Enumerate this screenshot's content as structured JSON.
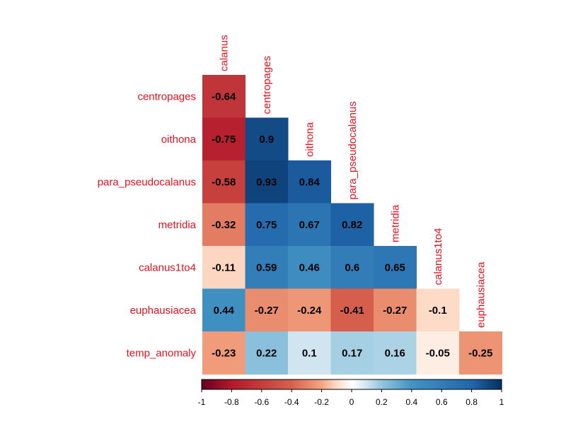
{
  "chart_data": {
    "type": "heatmap",
    "layout": "lower-triangular correlation matrix",
    "variables": [
      "calanus",
      "centropages",
      "oithona",
      "para_pseudocalanus",
      "metridia",
      "calanus1to4",
      "euphausiacea",
      "temp_anomaly"
    ],
    "row_labels": [
      "centropages",
      "oithona",
      "para_pseudocalanus",
      "metridia",
      "calanus1to4",
      "euphausiacea",
      "temp_anomaly"
    ],
    "column_labels": [
      "calanus",
      "centropages",
      "oithona",
      "para_pseudocalanus",
      "metridia",
      "calanus1to4",
      "euphausiacea"
    ],
    "values": [
      [
        -0.64
      ],
      [
        -0.75,
        0.9
      ],
      [
        -0.58,
        0.93,
        0.84
      ],
      [
        -0.32,
        0.75,
        0.67,
        0.82
      ],
      [
        -0.11,
        0.59,
        0.46,
        0.6,
        0.65
      ],
      [
        0.44,
        -0.27,
        -0.24,
        -0.41,
        -0.27,
        -0.1
      ],
      [
        -0.23,
        0.22,
        0.1,
        0.17,
        0.16,
        -0.05,
        -0.25
      ]
    ],
    "value_labels": [
      [
        "-0.64"
      ],
      [
        "-0.75",
        "0.9"
      ],
      [
        "-0.58",
        "0.93",
        "0.84"
      ],
      [
        "-0.32",
        "0.75",
        "0.67",
        "0.82"
      ],
      [
        "-0.11",
        "0.59",
        "0.46",
        "0.6",
        "0.65"
      ],
      [
        "0.44",
        "-0.27",
        "-0.24",
        "-0.41",
        "-0.27",
        "-0.1"
      ],
      [
        "-0.23",
        "0.22",
        "0.1",
        "0.17",
        "0.16",
        "-0.05",
        "-0.25"
      ]
    ],
    "colorbar": {
      "range": [
        -1,
        1
      ],
      "ticks": [
        -1,
        -0.8,
        -0.6,
        -0.4,
        -0.2,
        0,
        0.2,
        0.4,
        0.6,
        0.8,
        1
      ],
      "tick_labels": [
        "-1",
        "-0.8",
        "-0.6",
        "-0.4",
        "-0.2",
        "0",
        "0.2",
        "0.4",
        "0.6",
        "0.8",
        "1"
      ],
      "placement": "bottom",
      "colors": {
        "negative": "#b2182b",
        "mid": "#ffffff",
        "positive": "#2166ac"
      }
    },
    "label_color": "#e8121f",
    "value_text_color": "#000000",
    "title": "",
    "grid": false
  }
}
